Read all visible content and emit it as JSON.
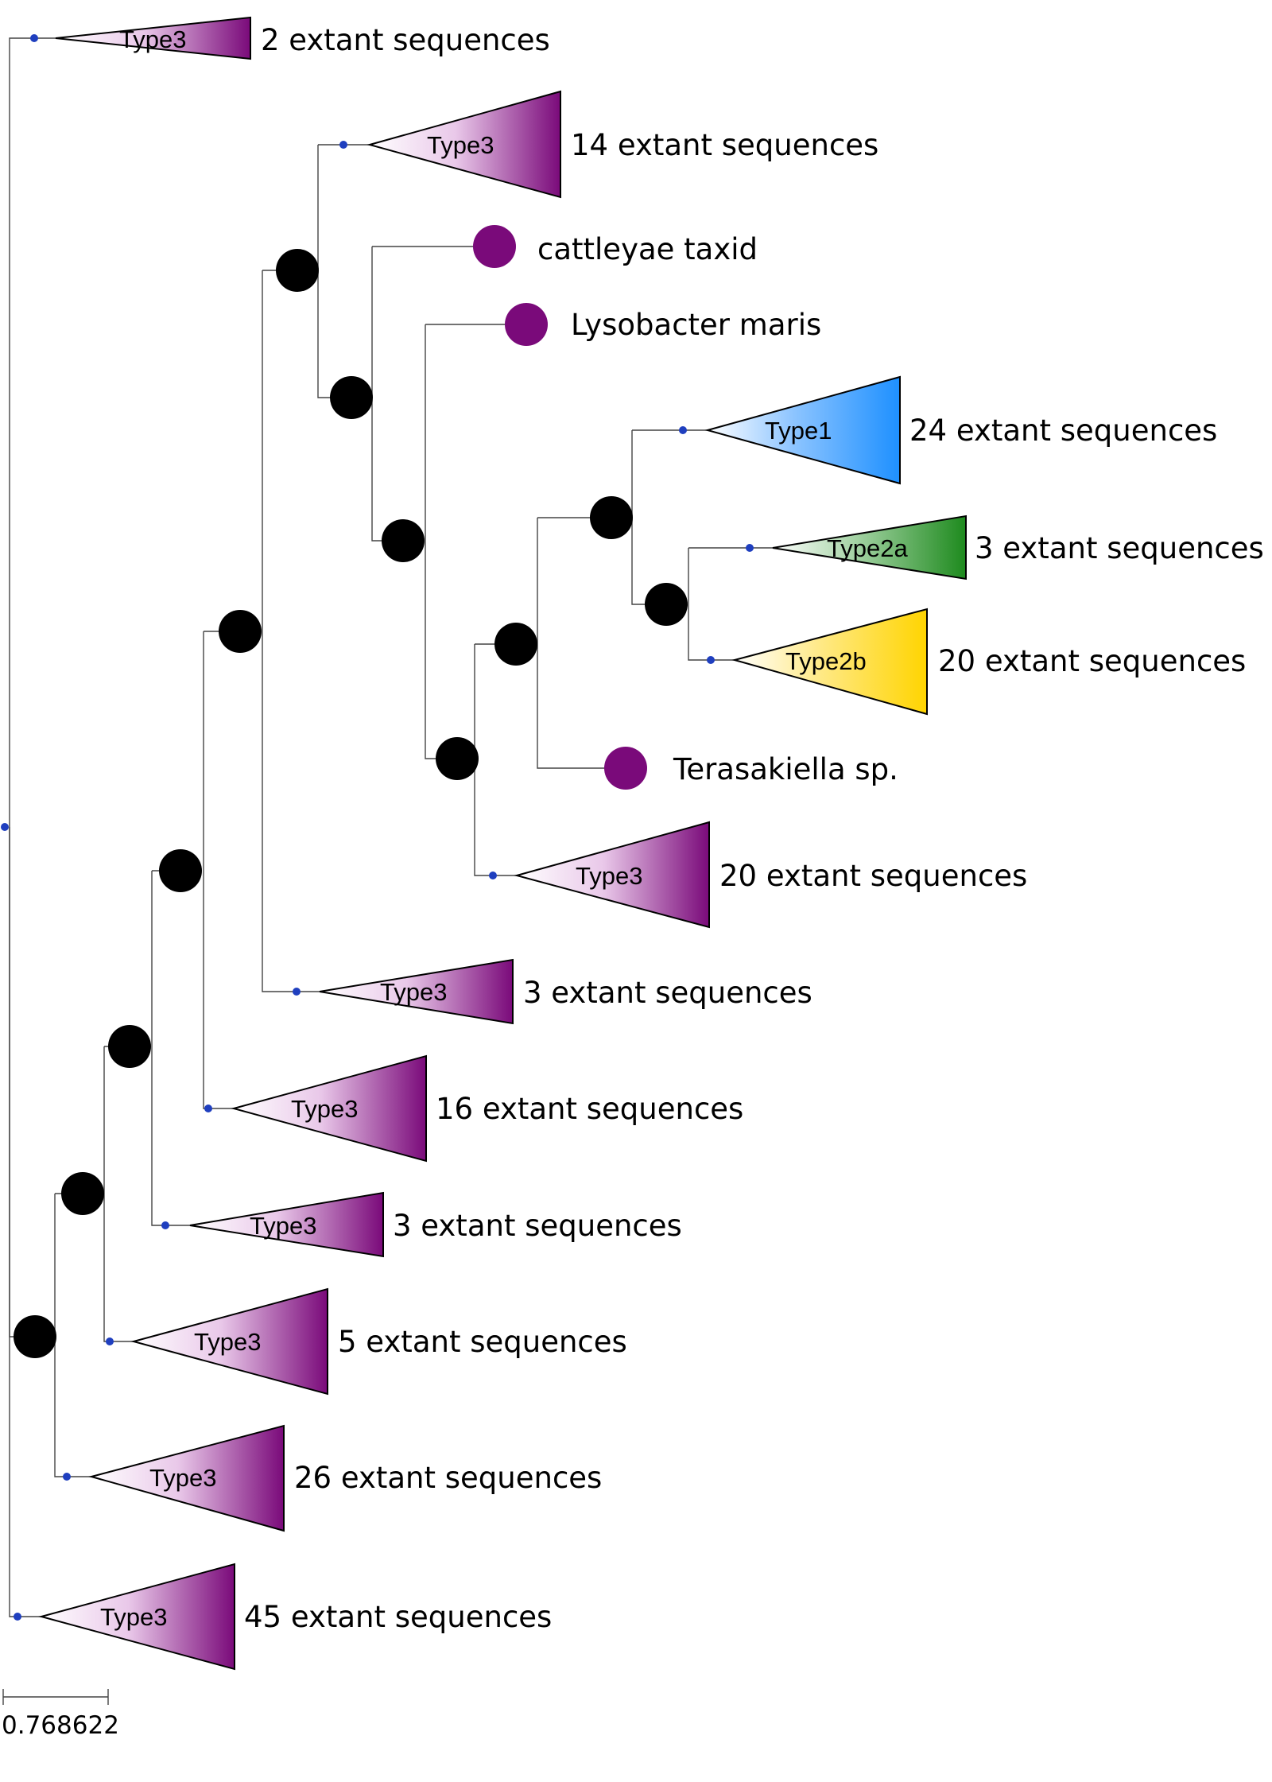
{
  "colors": {
    "type3": "#7a0a7a",
    "type1": "#1e90ff",
    "type2a": "#1e8a1e",
    "type2b": "#ffd400",
    "leaf": "#7a0a7a",
    "node": "#000000",
    "root_dot": "#1f3fbf"
  },
  "clades": [
    {
      "id": "c1",
      "name": "Type3",
      "count_label": "2 extant sequences",
      "color": "type3"
    },
    {
      "id": "c2",
      "name": "Type3",
      "count_label": "14 extant sequences",
      "color": "type3"
    },
    {
      "id": "c3",
      "name": "Type1",
      "count_label": "24 extant sequences",
      "color": "type1"
    },
    {
      "id": "c4",
      "name": "Type2a",
      "count_label": "3 extant sequences",
      "color": "type2a"
    },
    {
      "id": "c5",
      "name": "Type2b",
      "count_label": "20 extant sequences",
      "color": "type2b"
    },
    {
      "id": "c6",
      "name": "Type3",
      "count_label": "20 extant sequences",
      "color": "type3"
    },
    {
      "id": "c7",
      "name": "Type3",
      "count_label": "3 extant sequences",
      "color": "type3"
    },
    {
      "id": "c8",
      "name": "Type3",
      "count_label": "16 extant sequences",
      "color": "type3"
    },
    {
      "id": "c9",
      "name": "Type3",
      "count_label": "3 extant sequences",
      "color": "type3"
    },
    {
      "id": "c10",
      "name": "Type3",
      "count_label": "5 extant sequences",
      "color": "type3"
    },
    {
      "id": "c11",
      "name": "Type3",
      "count_label": "26 extant sequences",
      "color": "type3"
    },
    {
      "id": "c12",
      "name": "Type3",
      "count_label": "45 extant sequences",
      "color": "type3"
    }
  ],
  "leaves": [
    {
      "id": "l1",
      "label": "cattleyae taxid"
    },
    {
      "id": "l2",
      "label": "Lysobacter maris"
    },
    {
      "id": "l3",
      "label": "Terasakiella sp."
    }
  ],
  "scale_bar": {
    "value": "0.768622"
  }
}
